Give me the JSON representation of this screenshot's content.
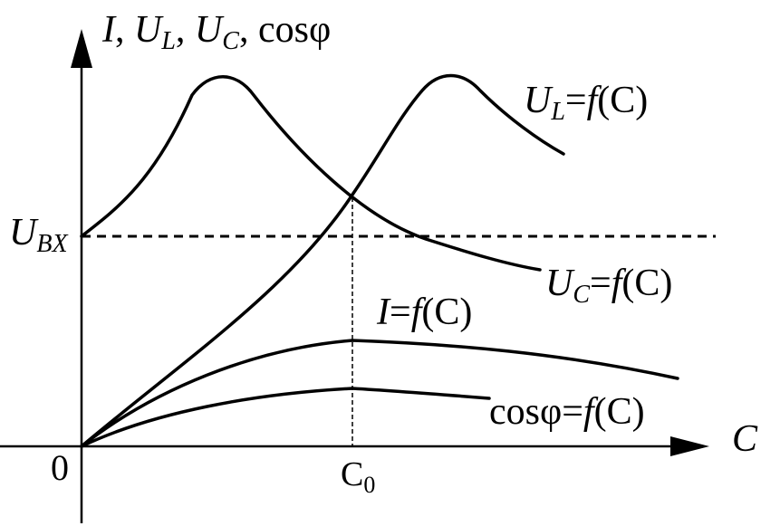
{
  "labels": {
    "y_axis_I": "I",
    "y_axis_sep1": ", ",
    "y_axis_U": "U",
    "y_axis_L_sub": "L",
    "y_axis_sep2": ", ",
    "y_axis_C_sub": "C",
    "y_axis_sep3": ", ",
    "y_axis_cos": "cosφ",
    "x_axis": "C",
    "origin": "0",
    "ubx_U": "U",
    "ubx_sub": "BX",
    "c0_main": "C",
    "c0_sub": "0",
    "ul_U": "U",
    "ul_sub": "L",
    "ul_rest_eq": "=",
    "ul_f": "f",
    "ul_arg": "(C)",
    "uc_U": "U",
    "uc_sub": "C",
    "uc_rest_eq": "=",
    "uc_f": "f",
    "uc_arg": "(C)",
    "i_I": "I",
    "i_eq": "=",
    "i_f": "f",
    "i_arg": "(C)",
    "cos_name": "cosφ",
    "cos_eq": "=",
    "cos_f": "f",
    "cos_arg": "(C)"
  },
  "colors": {
    "stroke": "#000000",
    "background": "#ffffff"
  }
}
